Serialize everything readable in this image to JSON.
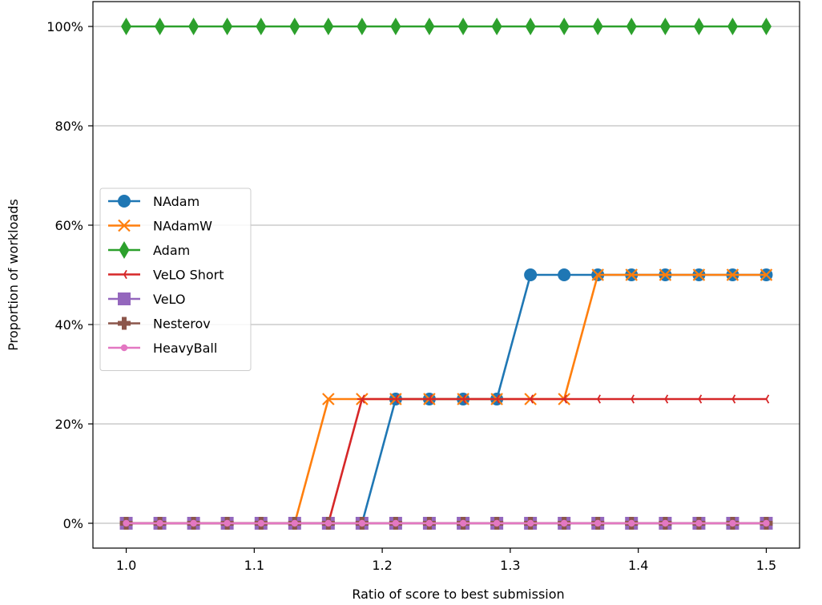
{
  "chart_data": {
    "type": "line",
    "title": "",
    "xlabel": "Ratio of score to best submission",
    "ylabel": "Proportion of workloads",
    "xlim": [
      0.974,
      1.526
    ],
    "ylim": [
      -5,
      105
    ],
    "x_ticks": [
      1.0,
      1.1,
      1.2,
      1.3,
      1.4,
      1.5
    ],
    "x_tick_labels": [
      "1.0",
      "1.1",
      "1.2",
      "1.3",
      "1.4",
      "1.5"
    ],
    "y_ticks": [
      0,
      20,
      40,
      60,
      80,
      100
    ],
    "y_tick_labels": [
      "0%",
      "20%",
      "40%",
      "60%",
      "80%",
      "100%"
    ],
    "grid": "horizontal",
    "legend_position": "center-left",
    "x": [
      1.0,
      1.0263,
      1.0526,
      1.0789,
      1.1053,
      1.1316,
      1.1579,
      1.1842,
      1.2105,
      1.2368,
      1.2632,
      1.2895,
      1.3158,
      1.3421,
      1.3684,
      1.3947,
      1.4211,
      1.4474,
      1.4737,
      1.5
    ],
    "series": [
      {
        "name": "NAdam",
        "color": "#1f77b4",
        "marker": "circle",
        "values": [
          0,
          0,
          0,
          0,
          0,
          0,
          0,
          0,
          25,
          25,
          25,
          25,
          50,
          50,
          50,
          50,
          50,
          50,
          50,
          50
        ]
      },
      {
        "name": "NAdamW",
        "color": "#ff7f0e",
        "marker": "x",
        "values": [
          0,
          0,
          0,
          0,
          0,
          0,
          25,
          25,
          25,
          25,
          25,
          25,
          25,
          25,
          50,
          50,
          50,
          50,
          50,
          50
        ]
      },
      {
        "name": "Adam",
        "color": "#2ca02c",
        "marker": "thin-diamond",
        "values": [
          100,
          100,
          100,
          100,
          100,
          100,
          100,
          100,
          100,
          100,
          100,
          100,
          100,
          100,
          100,
          100,
          100,
          100,
          100,
          100
        ]
      },
      {
        "name": "VeLO Short",
        "color": "#d62728",
        "marker": "tri-left",
        "values": [
          0,
          0,
          0,
          0,
          0,
          0,
          0,
          25,
          25,
          25,
          25,
          25,
          25,
          25,
          25,
          25,
          25,
          25,
          25,
          25
        ]
      },
      {
        "name": "VeLO",
        "color": "#9467bd",
        "marker": "square",
        "values": [
          0,
          0,
          0,
          0,
          0,
          0,
          0,
          0,
          0,
          0,
          0,
          0,
          0,
          0,
          0,
          0,
          0,
          0,
          0,
          0
        ]
      },
      {
        "name": "Nesterov",
        "color": "#8c564b",
        "marker": "plus",
        "values": [
          0,
          0,
          0,
          0,
          0,
          0,
          0,
          0,
          0,
          0,
          0,
          0,
          0,
          0,
          0,
          0,
          0,
          0,
          0,
          0
        ]
      },
      {
        "name": "HeavyBall",
        "color": "#e377c2",
        "marker": "point",
        "values": [
          0,
          0,
          0,
          0,
          0,
          0,
          0,
          0,
          0,
          0,
          0,
          0,
          0,
          0,
          0,
          0,
          0,
          0,
          0,
          0
        ]
      }
    ]
  }
}
